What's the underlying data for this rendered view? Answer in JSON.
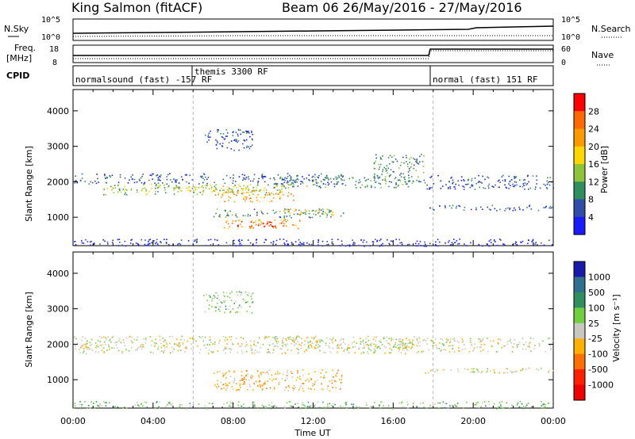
{
  "header": {
    "station": "King Salmon (fitACF)",
    "beam_info": "Beam 06  26/May/2016 - 27/May/2016"
  },
  "strips": {
    "nsky": {
      "label": "N.Sky",
      "left_ticks": [
        "10^5",
        "10^0"
      ],
      "right_label": "N.Search",
      "right_ticks": [
        "10^5",
        "10^0"
      ]
    },
    "freq": {
      "label_line1": "Freq.",
      "label_line2": "[MHz]",
      "left_ticks": [
        "18",
        "8"
      ],
      "right_label": "Nave",
      "right_ticks": [
        "60",
        "0"
      ]
    },
    "cpid": {
      "label": "CPID",
      "segments": [
        {
          "text": "normalsound (fast) -157 RF",
          "start_hour": 0
        },
        {
          "text": "themis 3300 RF",
          "start_hour": 6
        },
        {
          "text": "normal (fast) 151 RF",
          "start_hour": 18
        }
      ]
    }
  },
  "chart_data": [
    {
      "type": "heatmap",
      "title": "",
      "xlabel": "",
      "ylabel": "Slant Range [km]",
      "xlim": [
        0,
        24
      ],
      "ylim": [
        200,
        4600
      ],
      "y_ticks": [
        "1000",
        "2000",
        "3000",
        "4000"
      ],
      "colorbar": {
        "label": "Power [dB]",
        "ticks": [
          "28",
          "24",
          "20",
          "16",
          "12",
          "8",
          "4"
        ],
        "colors": [
          "#ff0000",
          "#ff6a00",
          "#ff9900",
          "#ffd700",
          "#8fc33a",
          "#2f8f5f",
          "#2f4ea8",
          "#1a1aff"
        ]
      },
      "regions": [
        {
          "t0": 0.0,
          "t1": 13.5,
          "r0": 1950,
          "r1": 2250,
          "level": 1
        },
        {
          "t0": 1.5,
          "t1": 11.0,
          "r0": 1650,
          "r1": 1950,
          "level": 3
        },
        {
          "t0": 5.0,
          "t1": 9.5,
          "r0": 1750,
          "r1": 1900,
          "level": 4
        },
        {
          "t0": 7.0,
          "t1": 11.0,
          "r0": 1450,
          "r1": 1750,
          "level": 5
        },
        {
          "t0": 10.0,
          "t1": 17.0,
          "r0": 1850,
          "r1": 2150,
          "level": 2
        },
        {
          "t0": 7.0,
          "t1": 13.5,
          "r0": 1000,
          "r1": 1250,
          "level": 2
        },
        {
          "t0": 7.5,
          "t1": 11.5,
          "r0": 700,
          "r1": 950,
          "level": 5
        },
        {
          "t0": 8.0,
          "t1": 10.5,
          "r0": 750,
          "r1": 900,
          "level": 7
        },
        {
          "t0": 10.5,
          "t1": 13.0,
          "r0": 1050,
          "r1": 1250,
          "level": 4
        },
        {
          "t0": 6.5,
          "t1": 9.0,
          "r0": 2900,
          "r1": 3500,
          "level": 1
        },
        {
          "t0": 0.0,
          "t1": 24.0,
          "r0": 200,
          "r1": 400,
          "level": 0
        },
        {
          "t0": 17.5,
          "t1": 24.0,
          "r0": 1200,
          "r1": 1350,
          "level": 1
        },
        {
          "t0": 17.5,
          "t1": 24.0,
          "r0": 1800,
          "r1": 2200,
          "level": 1
        },
        {
          "t0": 15.0,
          "t1": 17.5,
          "r0": 2000,
          "r1": 2800,
          "level": 2
        }
      ]
    },
    {
      "type": "heatmap",
      "title": "",
      "xlabel": "Time UT",
      "ylabel": "Slant Range [km]",
      "xlim": [
        0,
        24
      ],
      "ylim": [
        200,
        4600
      ],
      "x_ticks": [
        "00:00",
        "04:00",
        "08:00",
        "12:00",
        "16:00",
        "20:00",
        "00:00"
      ],
      "y_ticks": [
        "1000",
        "2000",
        "3000",
        "4000"
      ],
      "colorbar": {
        "label": "Velocity [m s⁻¹]",
        "ticks": [
          "1000",
          "500",
          "100",
          "25",
          "-25",
          "-100",
          "-500",
          "-1000"
        ],
        "colors": [
          "#1a1aaa",
          "#2f6f8f",
          "#2f8f5f",
          "#6fcf3f",
          "#c8c8c0",
          "#ffb000",
          "#ff7000",
          "#ff2000",
          "#ee0000"
        ]
      },
      "regions": [
        {
          "t0": 0.0,
          "t1": 17.5,
          "r0": 1750,
          "r1": 2250,
          "level": 4
        },
        {
          "t0": 10.0,
          "t1": 17.0,
          "r0": 1900,
          "r1": 2200,
          "level": 4
        },
        {
          "t0": 7.0,
          "t1": 13.5,
          "r0": 700,
          "r1": 1300,
          "level": 5
        },
        {
          "t0": 17.5,
          "t1": 24.0,
          "r0": 1200,
          "r1": 1350,
          "level": 4
        },
        {
          "t0": 17.5,
          "t1": 24.0,
          "r0": 1800,
          "r1": 2200,
          "level": 4
        },
        {
          "t0": 6.5,
          "t1": 9.0,
          "r0": 2900,
          "r1": 3500,
          "level": 3
        },
        {
          "t0": 0.0,
          "t1": 24.0,
          "r0": 200,
          "r1": 400,
          "level": 3
        }
      ]
    }
  ]
}
